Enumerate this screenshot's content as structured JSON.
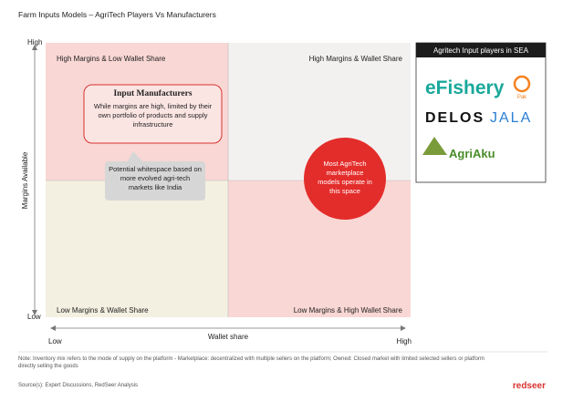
{
  "header": {
    "title": "Farm Inputs Models – AgriTech Players Vs Manufacturers"
  },
  "axes": {
    "y": {
      "label": "Margins Available",
      "high": "High",
      "low": "Low"
    },
    "x": {
      "label": "Wallet share",
      "low": "Low",
      "high": "High"
    }
  },
  "quadrants": {
    "top_left": "High Margins & Low Wallet Share",
    "top_right": "High Margins & Wallet Share",
    "bottom_left": "Low Margins & Wallet Share",
    "bottom_right": "Low Margins & High Wallet Share"
  },
  "callouts": {
    "manufacturers": {
      "title": "Input Manufacturers",
      "text": "While margins are high, limited by their own portfolio of products and supply infrastructure"
    },
    "whitespace": "Potential whitespace based on more evolved agri-tech markets like India",
    "marketplace": "Most AgriTech marketplace models operate in this space"
  },
  "panel": {
    "title": "Agritech Input players in SEA",
    "logos": [
      "eFishery",
      "Pak",
      "DELOS",
      "JALA",
      "AgriAku"
    ]
  },
  "footer": {
    "note": "Note: Inventory mix refers to the mode of supply on the platform - Marketplace: decentralized with multiple sellers on the platform; Owned: Closed market with limited selected sellers or platform directly selling the goods",
    "source": "Source(s): Expert Discussions, RedSeer Analysis",
    "brand": "redseer"
  }
}
